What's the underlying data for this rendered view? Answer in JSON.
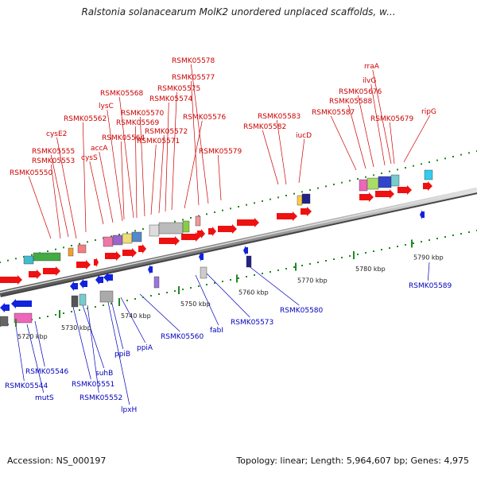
{
  "title": "Ralstonia solanacearum MolK2 unordered unplaced scaffolds, w...",
  "footer": {
    "accession": "Accession: NS_000197",
    "topology": "Topology: linear; Length: 5,964,607 bp; Genes: 4,975"
  },
  "colors": {
    "forward_gene": "#ee1111",
    "reverse_gene": "#1122dd",
    "forward_label": "#cc0000",
    "reverse_label": "#0000bb",
    "backbone": "#999999",
    "tick": "#228822"
  },
  "ticks": [
    "5720 kbp",
    "5730 kbp",
    "5740 kbp",
    "5750 kbp",
    "5760 kbp",
    "5770 kbp",
    "5780 kbp",
    "5790 kbp"
  ],
  "forward_labels": [
    "RSMK05550",
    "RSMK05553",
    "RSMK05555",
    "cysE2",
    "RSMK05562",
    "cysS",
    "accA",
    "lysC",
    "RSMK05564",
    "RSMK05568",
    "RSMK05569",
    "RSMK05570",
    "RSMK05571",
    "RSMK05572",
    "RSMK05574",
    "RSMK05575",
    "RSMK05576",
    "RSMK05577",
    "RSMK05578",
    "RSMK05579",
    "RSMK05582",
    "RSMK05583",
    "iucD",
    "RSMK05587",
    "RSMK05588",
    "RSMK05676",
    "ilvG",
    "rraA",
    "RSMK05679",
    "ripG"
  ],
  "reverse_labels": [
    "RSMK05544",
    "mutS",
    "RSMK05546",
    "RSMK05551",
    "suhB",
    "RSMK05552",
    "lpxH",
    "ppiB",
    "ppiA",
    "RSMK05560",
    "fabI",
    "RSMK05573",
    "RSMK05580",
    "RSMK05589"
  ]
}
